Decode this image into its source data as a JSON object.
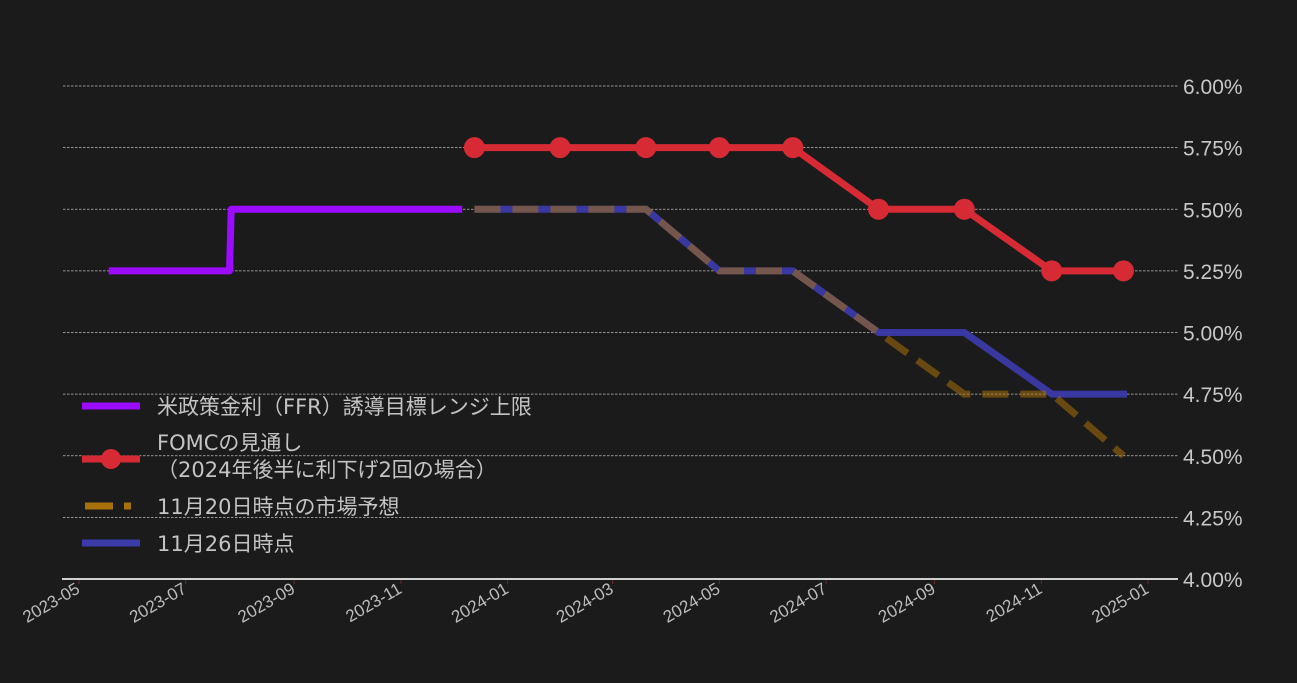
{
  "chart_data": {
    "type": "line",
    "title": "",
    "xlabel": "",
    "ylabel": "",
    "y_axis_position": "right",
    "ylim": [
      4.0,
      6.0
    ],
    "y_ticks": [
      "4.00%",
      "4.25%",
      "4.50%",
      "4.75%",
      "5.00%",
      "5.25%",
      "5.50%",
      "5.75%",
      "6.00%"
    ],
    "y_tick_values": [
      4.0,
      4.25,
      4.5,
      4.75,
      5.0,
      5.25,
      5.5,
      5.75,
      6.0
    ],
    "x_ticks": [
      "2023-05",
      "2023-07",
      "2023-09",
      "2023-11",
      "2024-01",
      "2024-03",
      "2024-05",
      "2024-07",
      "2024-09",
      "2024-11",
      "2025-01"
    ],
    "grid": "horizontal dashed",
    "legend_position": "lower left",
    "series": [
      {
        "name": "米政策金利（FFR）誘導目標レンジ上限",
        "color": "#9b0bff",
        "style": "solid-step",
        "x": [
          "2023-05-18",
          "2023-07-26",
          "2023-07-27",
          "2023-12-06"
        ],
        "values": [
          5.25,
          5.25,
          5.5,
          5.5
        ]
      },
      {
        "name": "FOMCの見通し（2024年後半に利下げ2回の場合）",
        "color": "#d62b35",
        "style": "solid-marker",
        "x": [
          "2023-12-13",
          "2024-01-31",
          "2024-03-20",
          "2024-05-01",
          "2024-06-12",
          "2024-07-31",
          "2024-09-18",
          "2024-11-07",
          "2024-12-18"
        ],
        "values": [
          5.75,
          5.75,
          5.75,
          5.75,
          5.75,
          5.5,
          5.5,
          5.25,
          5.25
        ]
      },
      {
        "name": "11月20日時点の市場予想",
        "color": "#a6700a",
        "style": "dashed",
        "x": [
          "2023-12-13",
          "2024-01-31",
          "2024-03-20",
          "2024-05-01",
          "2024-06-12",
          "2024-07-31",
          "2024-09-18",
          "2024-11-07",
          "2024-12-18"
        ],
        "values": [
          5.5,
          5.5,
          5.5,
          5.25,
          5.25,
          5.0,
          4.75,
          4.75,
          4.5
        ]
      },
      {
        "name": "11月26日時点",
        "color": "#3a3aa8",
        "style": "solid",
        "x": [
          "2023-12-13",
          "2024-01-31",
          "2024-03-20",
          "2024-05-01",
          "2024-06-12",
          "2024-07-31",
          "2024-09-18",
          "2024-11-07",
          "2024-12-20"
        ],
        "values": [
          5.5,
          5.5,
          5.5,
          5.25,
          5.25,
          5.0,
          5.0,
          4.75,
          4.75
        ]
      }
    ]
  },
  "legend": {
    "items": [
      {
        "label": "米政策金利（FFR）誘導目標レンジ上限"
      },
      {
        "label": "FOMCの見通し",
        "label_line2": "（2024年後半に利下げ2回の場合）"
      },
      {
        "label": "11月20日時点の市場予想"
      },
      {
        "label": "11月26日時点"
      }
    ]
  },
  "colors": {
    "background": "#1b1b1b",
    "ffr": "#9b0bff",
    "fomc": "#d62b35",
    "market_1120": "#a6700a",
    "market_1126": "#3a3aa8",
    "grid": "#bdbdbd",
    "text": "#c4c4c4"
  }
}
